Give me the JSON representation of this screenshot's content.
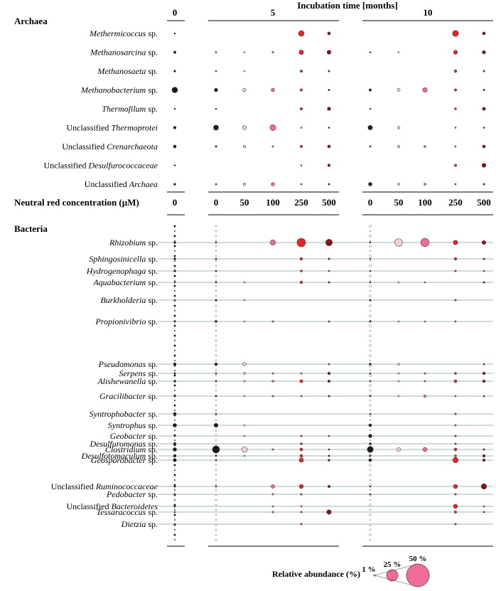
{
  "chart_data": {
    "type": "bubble-matrix",
    "title": "Incubation time [months]",
    "x_axis_label": "Neutral red concentration (µM)",
    "legend_title": "Relative abundance (%)",
    "legend_sizes": [
      {
        "value": 1,
        "label": "1 %"
      },
      {
        "value": 25,
        "label": "25 %"
      },
      {
        "value": 50,
        "label": "50 %"
      }
    ],
    "colors": {
      "0": "#1a1a1a",
      "50": "#efd2d2",
      "100": "#f06a9a",
      "250": "#e8242a",
      "500": "#8a1216",
      "baseline": "#ffffff"
    },
    "time_groups": [
      {
        "months": "0",
        "columns": [
          "0"
        ]
      },
      {
        "months": "5",
        "columns": [
          "0",
          "50",
          "100",
          "250",
          "500"
        ]
      },
      {
        "months": "10",
        "columns": [
          "0",
          "50",
          "100",
          "250",
          "500"
        ]
      }
    ],
    "column_headers": [
      "0",
      "0",
      "50",
      "100",
      "250",
      "500",
      "0",
      "50",
      "100",
      "250",
      "500"
    ],
    "archaea": {
      "section_title": "Archaea",
      "taxa": [
        {
          "name": "Methermicoccus",
          "pre": "",
          "suffix": " sp.",
          "values": [
            0.4,
            0,
            0,
            0,
            22,
            6,
            0,
            0,
            0,
            25,
            6
          ]
        },
        {
          "name": "Methanosarcina",
          "pre": "",
          "suffix": " sp.",
          "values": [
            4,
            1,
            0.8,
            2,
            14,
            11,
            1.2,
            1,
            0,
            11,
            8
          ]
        },
        {
          "name": "Methanosaeta",
          "pre": "",
          "suffix": " sp.",
          "values": [
            2.5,
            0.6,
            0.2,
            0,
            4,
            2,
            0,
            0,
            0,
            5,
            2
          ]
        },
        {
          "name": "Methanobacterium",
          "pre": "",
          "suffix": " sp.",
          "values": [
            22,
            8,
            8,
            8,
            4,
            2,
            4,
            6,
            14,
            4,
            2
          ]
        },
        {
          "name": "Thermofilum",
          "pre": "",
          "suffix": " sp.",
          "values": [
            0.4,
            0.6,
            0,
            0,
            4,
            8,
            0.8,
            0,
            0,
            3,
            7
          ]
        },
        {
          "name": "Thermoprotei",
          "pre": "Unclassified ",
          "suffix": "",
          "values": [
            5,
            18,
            11,
            24,
            0.3,
            1.5,
            14,
            5,
            0,
            0.4,
            1.5
          ]
        },
        {
          "name": "Crenarchaeota",
          "pre": "Unclassified ",
          "suffix": "",
          "values": [
            6,
            2,
            4,
            2,
            4,
            6,
            1.5,
            4,
            3,
            0.4,
            6
          ]
        },
        {
          "name": "Desulfurococcaceae",
          "pre": "Unclassified ",
          "suffix": "",
          "values": [
            0.4,
            0,
            0,
            0,
            0.6,
            5,
            0,
            0,
            0,
            4,
            11
          ]
        },
        {
          "name": "Archaea",
          "pre": "Unclassified ",
          "suffix": "",
          "values": [
            3,
            1.5,
            4,
            8,
            1.5,
            2,
            9,
            3,
            3,
            1.5,
            2
          ]
        }
      ]
    },
    "bacteria": {
      "section_title": "Bacteria",
      "taxa": [
        {
          "name": "Rhizobium",
          "pre": "",
          "suffix": " sp.",
          "values": [
            3,
            0.4,
            0,
            20,
            50,
            30,
            0.5,
            40,
            48,
            14,
            10
          ]
        },
        {
          "name": "Sphingosinicella",
          "pre": "",
          "suffix": " sp.",
          "values": [
            3,
            0.4,
            0,
            0,
            5,
            2,
            0.3,
            0,
            0,
            5,
            2
          ]
        },
        {
          "name": "Hydrogenophaga",
          "pre": "",
          "suffix": " sp.",
          "values": [
            3,
            0.6,
            0,
            0,
            3,
            1,
            0.3,
            0,
            0,
            2,
            1
          ]
        },
        {
          "name": "Aquabacterium",
          "pre": "",
          "suffix": " sp.",
          "values": [
            1,
            1,
            1.5,
            0,
            5,
            2,
            1,
            1.5,
            1,
            0,
            2
          ]
        },
        {
          "name": "Burkholderia",
          "pre": "",
          "suffix": " sp.",
          "values": [
            1,
            2,
            1,
            0,
            0,
            0,
            2,
            0,
            0,
            2,
            0
          ]
        },
        {
          "name": "Propionivibrio",
          "pre": "",
          "suffix": " sp.",
          "values": [
            2,
            3,
            0.4,
            2,
            0,
            1.5,
            2,
            0.8,
            1,
            1.5,
            0
          ]
        },
        {
          "name": "Pseudomonas",
          "pre": "",
          "suffix": " sp.",
          "values": [
            5,
            5,
            8,
            0,
            0,
            1.5,
            3,
            3,
            0,
            0,
            1.5
          ]
        },
        {
          "name": "Serpens",
          "pre": "",
          "suffix": " sp.",
          "values": [
            2,
            0.4,
            3,
            2,
            1.5,
            5,
            1,
            1.5,
            2,
            3,
            5
          ]
        },
        {
          "name": "Alishewanella",
          "pre": "",
          "suffix": " sp.",
          "values": [
            3,
            1,
            2,
            3,
            7,
            4,
            1,
            1.5,
            2,
            6,
            5
          ]
        },
        {
          "name": "Gracilibacter",
          "pre": "",
          "suffix": " sp.",
          "values": [
            2,
            1.5,
            1.5,
            2,
            0.6,
            2,
            1.5,
            1.5,
            4,
            1,
            1.5
          ]
        },
        {
          "name": "Syntrophobacter",
          "pre": "",
          "suffix": " sp.",
          "values": [
            6,
            1.5,
            0,
            0,
            0,
            0,
            1,
            0,
            0,
            2,
            0
          ]
        },
        {
          "name": "Syntrophus",
          "pre": "",
          "suffix": " sp.",
          "values": [
            9,
            11,
            1,
            0,
            0,
            0,
            6,
            0,
            0,
            1.5,
            0
          ]
        },
        {
          "name": "Geobacter",
          "pre": "",
          "suffix": " sp.",
          "values": [
            1,
            0,
            1.5,
            0,
            2,
            0.6,
            8,
            0,
            0,
            2,
            0
          ]
        },
        {
          "name": "Desulfuromonas",
          "pre": "",
          "suffix": " sp.",
          "values": [
            5,
            0,
            0,
            0,
            3,
            0,
            3,
            0,
            0,
            2,
            0
          ]
        },
        {
          "name": "Clostridium",
          "pre": "",
          "suffix": " sp.",
          "values": [
            9,
            35,
            22,
            2,
            6,
            1.5,
            25,
            10,
            12,
            6,
            2
          ]
        },
        {
          "name": "Desulfotomaculum",
          "pre": "",
          "suffix": " sp.",
          "values": [
            5,
            1,
            1.5,
            0,
            6,
            2,
            2,
            0,
            0,
            3,
            5
          ]
        },
        {
          "name": "Geosporobacter",
          "pre": "",
          "suffix": " sp.",
          "values": [
            7,
            1,
            0,
            0,
            13,
            3,
            6,
            0,
            0,
            20,
            5
          ]
        },
        {
          "name": "Ruminococcaceae",
          "pre": "Unclassified ",
          "suffix": "",
          "values": [
            2,
            1.5,
            0,
            9,
            11,
            4,
            1,
            0,
            0,
            12,
            20
          ]
        },
        {
          "name": "Pedobacter",
          "pre": "",
          "suffix": " sp.",
          "values": [
            0.6,
            0,
            0,
            2,
            2,
            0,
            0.6,
            0,
            0,
            2,
            0
          ]
        },
        {
          "name": "Bacteroidetes",
          "pre": "Unclassified ",
          "suffix": "",
          "values": [
            2,
            0,
            0,
            1.5,
            1.5,
            0,
            0,
            0,
            0,
            12,
            0.6
          ]
        },
        {
          "name": "Tessaracoccus",
          "pre": "",
          "suffix": " sp.",
          "values": [
            0.6,
            0,
            0,
            2,
            2,
            14,
            0,
            0,
            0,
            4,
            1.5
          ]
        },
        {
          "name": "Dietzia",
          "pre": "",
          "suffix": " sp.",
          "values": [
            0.6,
            0,
            0,
            0,
            2,
            0,
            0,
            0,
            0,
            2,
            0
          ]
        }
      ]
    }
  }
}
